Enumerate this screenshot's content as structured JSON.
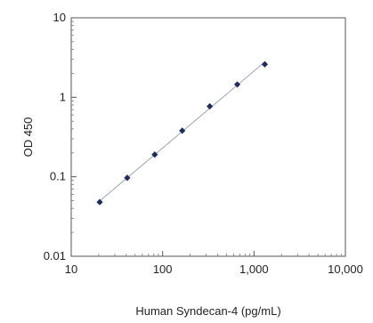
{
  "chart_data": {
    "type": "scatter",
    "title": "",
    "xlabel": "Human Syndecan-4  (pg/mL)",
    "ylabel": "OD 450",
    "x_scale": "log",
    "y_scale": "log",
    "xlim": [
      10,
      10000
    ],
    "ylim": [
      0.01,
      10
    ],
    "x_ticks": [
      10,
      100,
      1000,
      10000
    ],
    "x_tick_labels": [
      "10",
      "100",
      "1,000",
      "10,000"
    ],
    "y_ticks": [
      0.01,
      0.1,
      1,
      10
    ],
    "y_tick_labels": [
      "0.01",
      "0.1",
      "1",
      "10"
    ],
    "grid": false,
    "minor_ticks": true,
    "series": [
      {
        "x": [
          20.5,
          41,
          82,
          164,
          328,
          656,
          1312
        ],
        "y": [
          0.048,
          0.097,
          0.19,
          0.38,
          0.77,
          1.45,
          2.6
        ],
        "marker": "diamond",
        "color": "#1f2d5a"
      }
    ],
    "fit_line": {
      "color": "#9aa4b8",
      "style": "solid"
    }
  }
}
